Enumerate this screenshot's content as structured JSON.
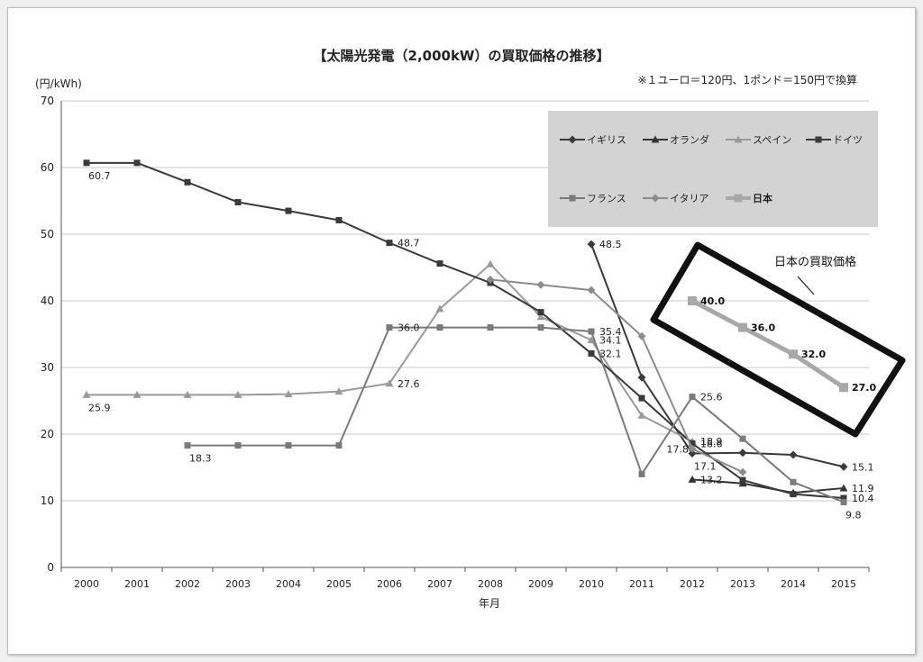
{
  "chart_data": {
    "type": "line",
    "title": "【太陽光発電（2,000kW）の買取価格の推移】",
    "note": "※１ユーロ＝120円、1ポンド＝150円で換算",
    "xlabel": "年月",
    "ylabel": "(円/kWh)",
    "ylim": [
      0,
      70
    ],
    "yticks": [
      0,
      10,
      20,
      30,
      40,
      50,
      60,
      70
    ],
    "x": [
      2000,
      2001,
      2002,
      2003,
      2004,
      2005,
      2006,
      2007,
      2008,
      2009,
      2010,
      2011,
      2012,
      2013,
      2014,
      2015
    ],
    "grid": true,
    "legend_position": "top-right",
    "series": [
      {
        "name": "イギリス",
        "marker": "diamond",
        "color": "#3a3a3a",
        "points": [
          [
            2010,
            48.5
          ],
          [
            2011,
            28.5
          ],
          [
            2012,
            17.1
          ],
          [
            2013,
            17.2
          ],
          [
            2014,
            16.9
          ],
          [
            2015,
            15.1
          ]
        ],
        "labels": [
          {
            "x": 2010,
            "y": 48.5,
            "text": "48.5",
            "pos": "right"
          },
          {
            "x": 2012,
            "y": 17.1,
            "text": "17.1",
            "pos": "below"
          },
          {
            "x": 2015,
            "y": 15.1,
            "text": "15.1",
            "pos": "right"
          }
        ]
      },
      {
        "name": "オランダ",
        "marker": "triangle",
        "color": "#333333",
        "points": [
          [
            2012,
            13.2
          ],
          [
            2013,
            12.6
          ],
          [
            2014,
            11.2
          ],
          [
            2015,
            11.9
          ]
        ],
        "labels": [
          {
            "x": 2012,
            "y": 13.2,
            "text": "13.2",
            "pos": "right"
          },
          {
            "x": 2015,
            "y": 11.9,
            "text": "11.9",
            "pos": "right"
          }
        ]
      },
      {
        "name": "スペイン",
        "marker": "triangle",
        "color": "#9a9a9a",
        "points": [
          [
            2000,
            25.9
          ],
          [
            2001,
            25.9
          ],
          [
            2002,
            25.9
          ],
          [
            2003,
            25.9
          ],
          [
            2004,
            26.0
          ],
          [
            2005,
            26.4
          ],
          [
            2006,
            27.6
          ],
          [
            2007,
            38.8
          ],
          [
            2008,
            45.5
          ],
          [
            2009,
            37.6
          ],
          [
            2010,
            34.1
          ],
          [
            2011,
            22.8
          ],
          [
            2012,
            18.9
          ]
        ],
        "labels": [
          {
            "x": 2000,
            "y": 25.9,
            "text": "25.9",
            "pos": "below"
          },
          {
            "x": 2006,
            "y": 27.6,
            "text": "27.6",
            "pos": "right"
          },
          {
            "x": 2010,
            "y": 34.1,
            "text": "34.1",
            "pos": "right"
          },
          {
            "x": 2012,
            "y": 18.9,
            "text": "18.9",
            "pos": "right"
          }
        ]
      },
      {
        "name": "ドイツ",
        "marker": "square",
        "color": "#3a3a3a",
        "points": [
          [
            2000,
            60.7
          ],
          [
            2001,
            60.7
          ],
          [
            2002,
            57.8
          ],
          [
            2003,
            54.8
          ],
          [
            2004,
            53.5
          ],
          [
            2005,
            52.1
          ],
          [
            2006,
            48.7
          ],
          [
            2007,
            45.6
          ],
          [
            2008,
            42.7
          ],
          [
            2009,
            38.3
          ],
          [
            2010,
            32.1
          ],
          [
            2011,
            25.4
          ],
          [
            2012,
            18.6
          ],
          [
            2013,
            13.1
          ],
          [
            2014,
            11.0
          ],
          [
            2015,
            10.4
          ]
        ],
        "labels": [
          {
            "x": 2000,
            "y": 60.7,
            "text": "60.7",
            "pos": "below"
          },
          {
            "x": 2006,
            "y": 48.7,
            "text": "48.7",
            "pos": "right"
          },
          {
            "x": 2010,
            "y": 32.1,
            "text": "32.1",
            "pos": "right"
          },
          {
            "x": 2012,
            "y": 18.6,
            "text": "18.6",
            "pos": "right"
          },
          {
            "x": 2015,
            "y": 10.4,
            "text": "10.4",
            "pos": "right"
          }
        ]
      },
      {
        "name": "フランス",
        "marker": "square",
        "color": "#7a7a7a",
        "points": [
          [
            2002,
            18.3
          ],
          [
            2003,
            18.3
          ],
          [
            2004,
            18.3
          ],
          [
            2005,
            18.3
          ],
          [
            2006,
            36.0
          ],
          [
            2007,
            36.0
          ],
          [
            2008,
            36.0
          ],
          [
            2009,
            36.0
          ],
          [
            2010,
            35.4
          ],
          [
            2011,
            14.0
          ],
          [
            2012,
            25.6
          ],
          [
            2013,
            19.3
          ],
          [
            2014,
            12.8
          ],
          [
            2015,
            9.8
          ]
        ],
        "labels": [
          {
            "x": 2002,
            "y": 18.3,
            "text": "18.3",
            "pos": "below"
          },
          {
            "x": 2006,
            "y": 36.0,
            "text": "36.0",
            "pos": "right"
          },
          {
            "x": 2010,
            "y": 35.4,
            "text": "35.4",
            "pos": "right"
          },
          {
            "x": 2012,
            "y": 25.6,
            "text": "25.6",
            "pos": "right"
          },
          {
            "x": 2015,
            "y": 9.8,
            "text": "9.8",
            "pos": "below"
          }
        ]
      },
      {
        "name": "イタリア",
        "marker": "diamond",
        "color": "#8c8c8c",
        "points": [
          [
            2008,
            43.2
          ],
          [
            2009,
            42.4
          ],
          [
            2010,
            41.6
          ],
          [
            2011,
            34.7
          ],
          [
            2012,
            17.8
          ],
          [
            2013,
            14.3
          ]
        ],
        "labels": [
          {
            "x": 2012,
            "y": 17.8,
            "text": "17.8",
            "pos": "left"
          }
        ]
      },
      {
        "name": "日本",
        "marker": "square",
        "color": "#a8a8a8",
        "thick": true,
        "points": [
          [
            2012,
            40.0
          ],
          [
            2013,
            36.0
          ],
          [
            2014,
            32.0
          ],
          [
            2015,
            27.0
          ]
        ],
        "labels": [
          {
            "x": 2012,
            "y": 40.0,
            "text": "40.0",
            "pos": "right"
          },
          {
            "x": 2013,
            "y": 36.0,
            "text": "36.0",
            "pos": "right"
          },
          {
            "x": 2014,
            "y": 32.0,
            "text": "32.0",
            "pos": "right"
          },
          {
            "x": 2015,
            "y": 27.0,
            "text": "27.0",
            "pos": "right"
          }
        ]
      }
    ],
    "annotation": {
      "text": "日本の買取価格"
    }
  }
}
